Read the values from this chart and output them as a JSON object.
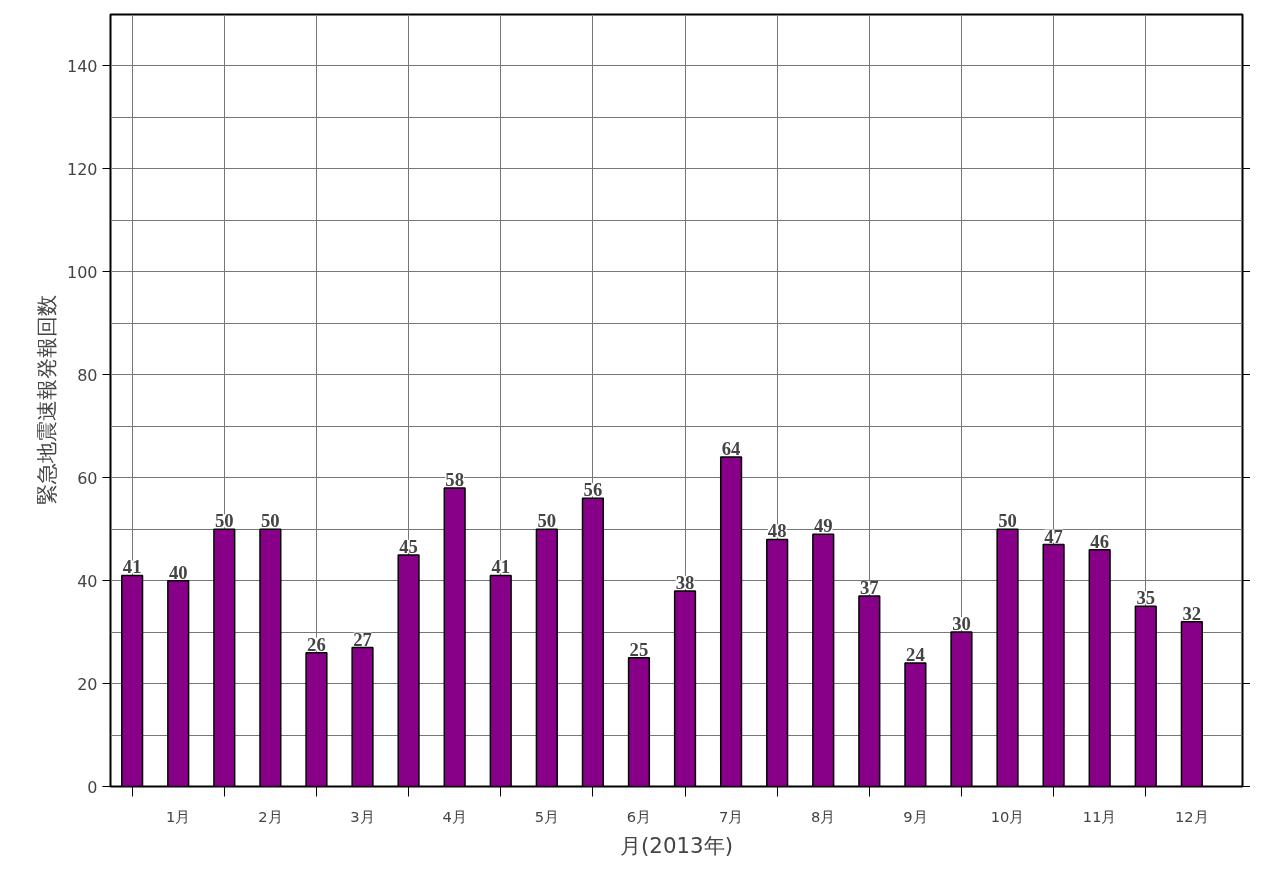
{
  "chart_data": {
    "type": "bar",
    "xlabel": "月(2013年)",
    "ylabel": "緊急地震速報発報回数",
    "categories": [
      null,
      "1月",
      null,
      "2月",
      null,
      "3月",
      null,
      "4月",
      null,
      "5月",
      null,
      "6月",
      null,
      "7月",
      null,
      "8月",
      null,
      "9月",
      null,
      "10月",
      null,
      "11月",
      null,
      "12月"
    ],
    "values": [
      41,
      40,
      50,
      50,
      26,
      27,
      45,
      58,
      41,
      50,
      56,
      25,
      38,
      64,
      48,
      49,
      37,
      24,
      30,
      50,
      47,
      46,
      35,
      32
    ],
    "color": "#880088",
    "ylim": [
      0,
      150
    ],
    "yticks": [
      0,
      {
        "value": 10,
        "label": null
      },
      20,
      {
        "value": 30,
        "label": null
      },
      40,
      {
        "value": 50,
        "label": null
      },
      60,
      {
        "value": 70,
        "label": null
      },
      80,
      {
        "value": 90,
        "label": null
      },
      100,
      {
        "value": 110,
        "label": null
      },
      120,
      {
        "value": 130,
        "label": null
      },
      140
    ],
    "grid": true,
    "data_labels": true
  }
}
